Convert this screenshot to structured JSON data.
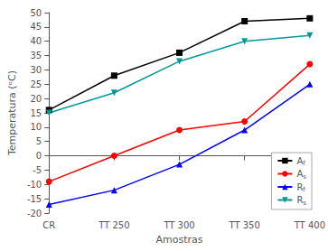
{
  "chart_data": {
    "type": "line",
    "xlabel": "Amostras",
    "ylabel": "Temperatura (ᵒC)",
    "categories": [
      "CR",
      "TT 250",
      "TT 300",
      "TT 350",
      "TT 400"
    ],
    "series": [
      {
        "name": "Af",
        "color": "#000000",
        "marker": "square",
        "values": [
          16,
          28,
          36,
          47,
          48
        ]
      },
      {
        "name": "As",
        "color": "#ff0000",
        "marker": "circle",
        "values": [
          -9,
          0,
          9,
          12,
          32
        ]
      },
      {
        "name": "Rf",
        "color": "#0000ff",
        "marker": "triangle",
        "values": [
          -17,
          -12,
          -3,
          9,
          25
        ]
      },
      {
        "name": "Rs",
        "color": "#009999",
        "marker": "triangle_down",
        "values": [
          15,
          22,
          33,
          40,
          42
        ]
      }
    ],
    "ylim": [
      -20,
      50
    ],
    "yticks": [
      -20,
      -15,
      -10,
      -5,
      0,
      5,
      10,
      15,
      20,
      25,
      30,
      35,
      40,
      45,
      50
    ],
    "grid": false,
    "legend": "lower right"
  }
}
